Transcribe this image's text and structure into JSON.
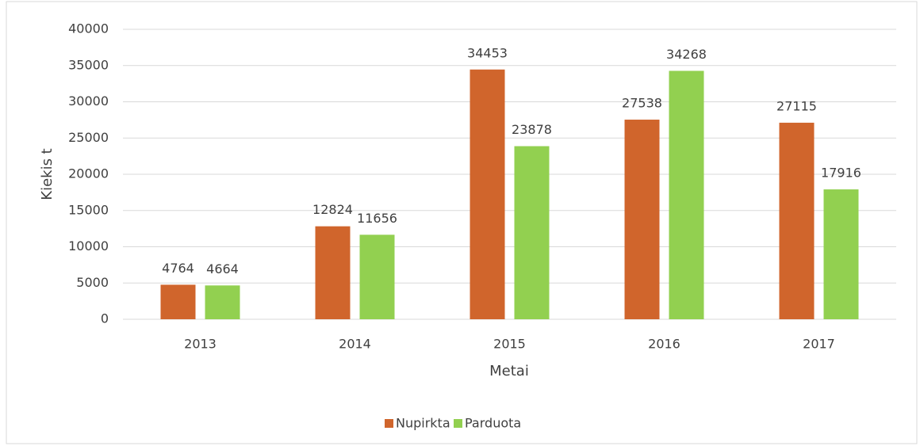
{
  "chart_data": {
    "type": "bar",
    "categories": [
      "2013",
      "2014",
      "2015",
      "2016",
      "2017"
    ],
    "series": [
      {
        "name": "Nupirkta",
        "color": "#d0652c",
        "values": [
          4764,
          12824,
          34453,
          27538,
          27115
        ]
      },
      {
        "name": "Parduota",
        "color": "#92d050",
        "values": [
          4664,
          11656,
          23878,
          34268,
          17916
        ]
      }
    ],
    "xlabel": "Metai",
    "ylabel": "Kiekis t",
    "ylim": [
      0,
      40000
    ],
    "yticks": [
      0,
      5000,
      10000,
      15000,
      20000,
      25000,
      30000,
      35000,
      40000
    ],
    "grid": true,
    "legend": "bottom"
  }
}
